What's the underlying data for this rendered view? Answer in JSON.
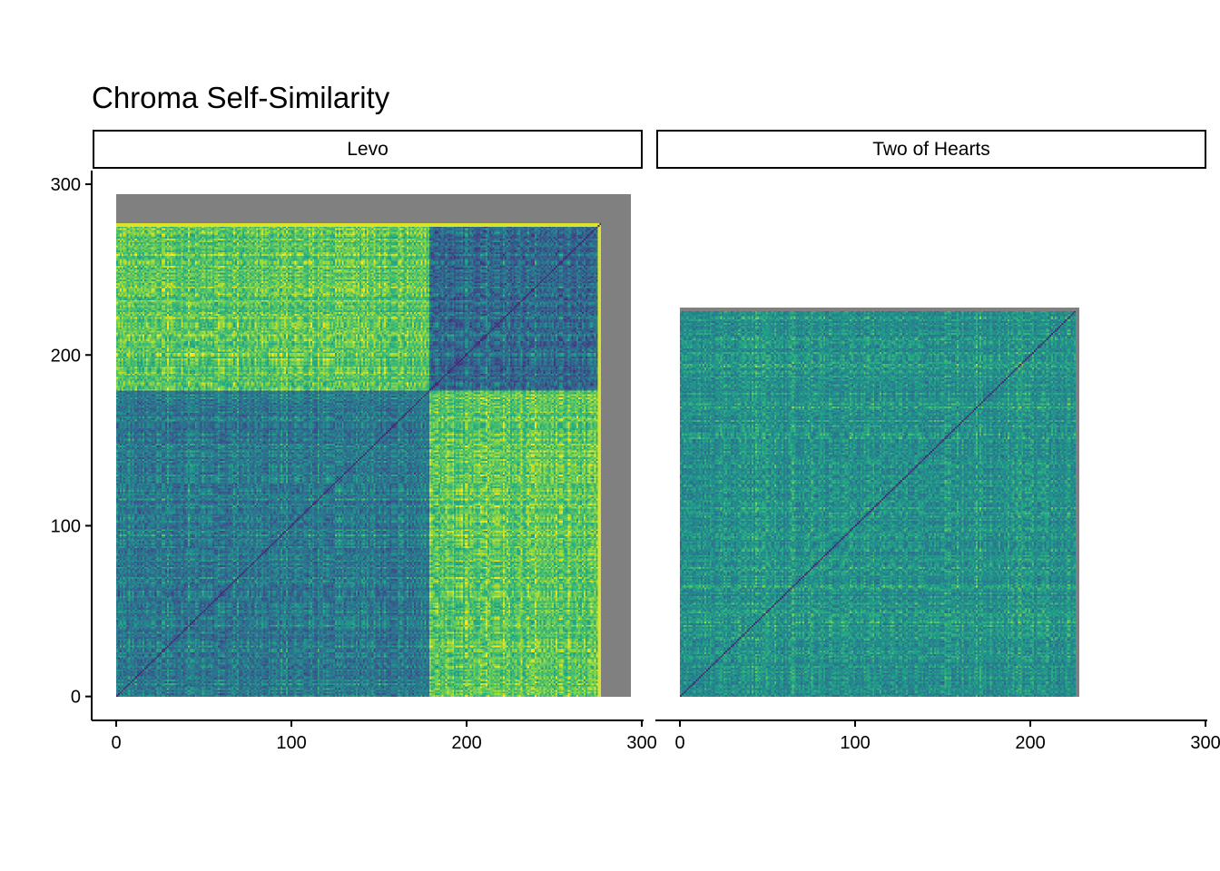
{
  "chart_data": {
    "type": "heatmap",
    "title": "Chroma Self-Similarity",
    "xlabel": "",
    "ylabel": "",
    "facets": [
      {
        "label": "Levo",
        "n_frames": 277,
        "grey_extent": 294
      },
      {
        "label": "Two of Hearts",
        "n_frames": 226,
        "grey_extent": 228
      }
    ],
    "xlim": [
      -14,
      301
    ],
    "ylim": [
      -14,
      308
    ],
    "x_ticks": [
      0,
      100,
      200,
      300
    ],
    "y_ticks": [
      0,
      100,
      200,
      300
    ],
    "x_tick_labels": [
      "0",
      "100",
      "200",
      "300"
    ],
    "y_tick_labels": [
      "0",
      "100",
      "200",
      "300"
    ],
    "colormap": "viridis",
    "colors": {
      "background_tile": "#808080",
      "low": "#440154",
      "mid": "#21908d",
      "high": "#fde725"
    },
    "grid": false
  }
}
